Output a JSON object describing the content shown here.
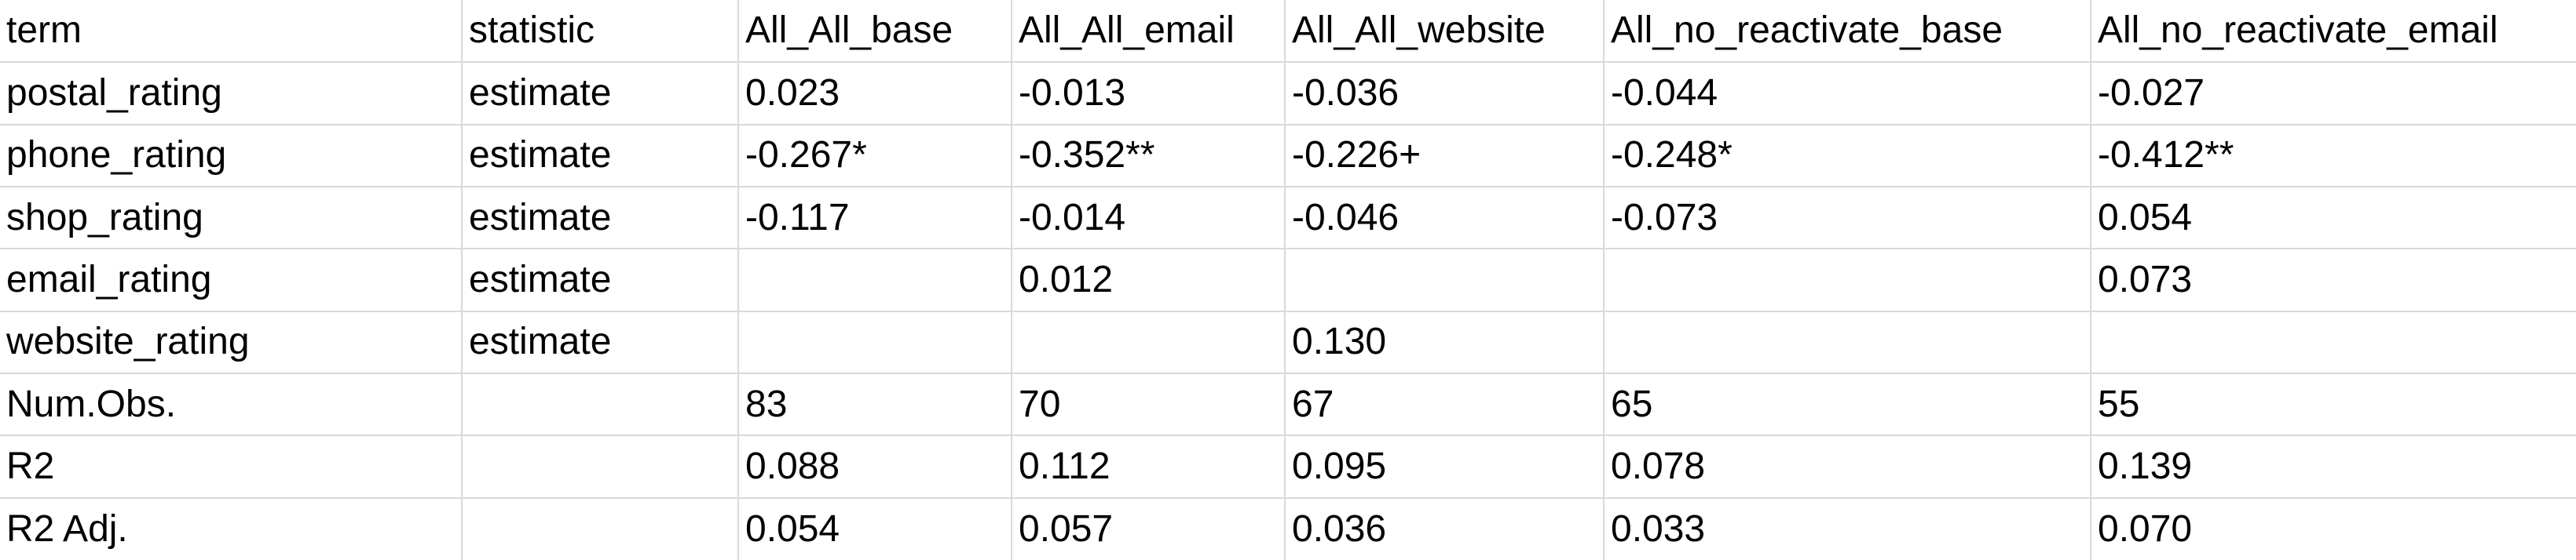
{
  "table": {
    "headers": [
      "term",
      "statistic",
      "All_All_base",
      "All_All_email",
      "All_All_website",
      "All_no_reactivate_base",
      "All_no_reactivate_email"
    ],
    "rows": [
      [
        "postal_rating",
        "estimate",
        "0.023",
        "-0.013",
        "-0.036",
        "-0.044",
        "-0.027"
      ],
      [
        "phone_rating",
        "estimate",
        "-0.267*",
        "-0.352**",
        "-0.226+",
        "-0.248*",
        "-0.412**"
      ],
      [
        "shop_rating",
        "estimate",
        "-0.117",
        "-0.014",
        "-0.046",
        "-0.073",
        "0.054"
      ],
      [
        "email_rating",
        "estimate",
        "",
        "0.012",
        "",
        "",
        "0.073"
      ],
      [
        "website_rating",
        "estimate",
        "",
        "",
        "0.130",
        "",
        ""
      ],
      [
        "Num.Obs.",
        "",
        "83",
        "70",
        "67",
        "65",
        "55"
      ],
      [
        "R2",
        "",
        "0.088",
        "0.112",
        "0.095",
        "0.078",
        "0.139"
      ],
      [
        "R2 Adj.",
        "",
        "0.054",
        "0.057",
        "0.036",
        "0.033",
        "0.070"
      ]
    ]
  }
}
